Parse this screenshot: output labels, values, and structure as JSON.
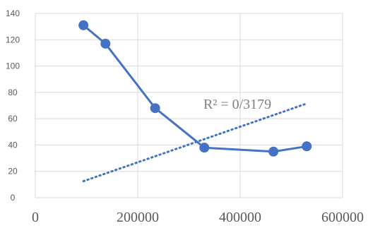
{
  "chart_data": {
    "type": "scatter",
    "title": "",
    "xlabel": "",
    "ylabel": "",
    "xlim": [
      0,
      600000
    ],
    "ylim": [
      0,
      140
    ],
    "x_ticks": [
      0,
      200000,
      400000,
      600000
    ],
    "x_tick_labels": [
      "0",
      "200000",
      "400000",
      "600000"
    ],
    "y_ticks": [
      0,
      20,
      40,
      60,
      80,
      100,
      120,
      140
    ],
    "y_tick_labels": [
      "0",
      "20",
      "40",
      "60",
      "80",
      "100",
      "120",
      "140"
    ],
    "grid": true,
    "legend": "none",
    "series": [
      {
        "x": [
          94000,
          137000,
          234000,
          330000,
          465000,
          530000
        ],
        "y": [
          131,
          117,
          68,
          38,
          35,
          39
        ],
        "color": "#4472C4",
        "line": "solid",
        "markers": true
      }
    ],
    "trendline": {
      "kind": "linear",
      "x_range": [
        94000,
        530000
      ],
      "y_range": [
        12.5,
        71.5
      ],
      "color": "#4472C4",
      "style": "dotted"
    },
    "annotations": [
      {
        "text": "R² = 0/3179"
      }
    ]
  }
}
